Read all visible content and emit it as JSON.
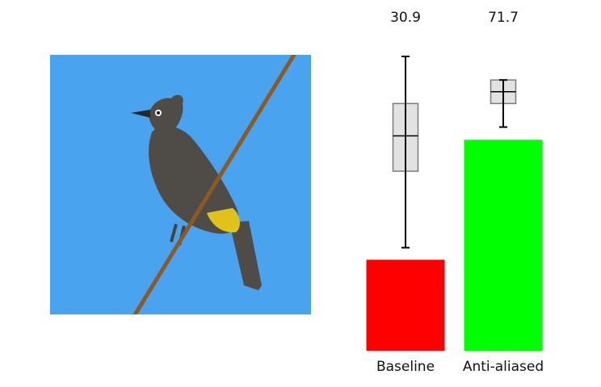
{
  "photo": {
    "sky_color": "#4aa3ef",
    "bird_color": "#4f4b47",
    "vent_color": "#e0c21a",
    "branch_color": "#8c5a22"
  },
  "chart_data": {
    "type": "bar",
    "categories": [
      "Baseline",
      "Anti-aliased"
    ],
    "values": [
      30.9,
      71.7
    ],
    "colors": [
      "#ff0000",
      "#00ff00"
    ],
    "ylim": [
      0,
      100
    ],
    "whiskers": [
      [
        35,
        100
      ],
      [
        76,
        92
      ]
    ],
    "boxes": [
      [
        61,
        84
      ],
      [
        84,
        92
      ]
    ],
    "medians": [
      73,
      88
    ],
    "box_color": "#e2e2e2",
    "show_value_labels": true,
    "grid": false,
    "xlabel": "",
    "ylabel": "",
    "title": ""
  }
}
